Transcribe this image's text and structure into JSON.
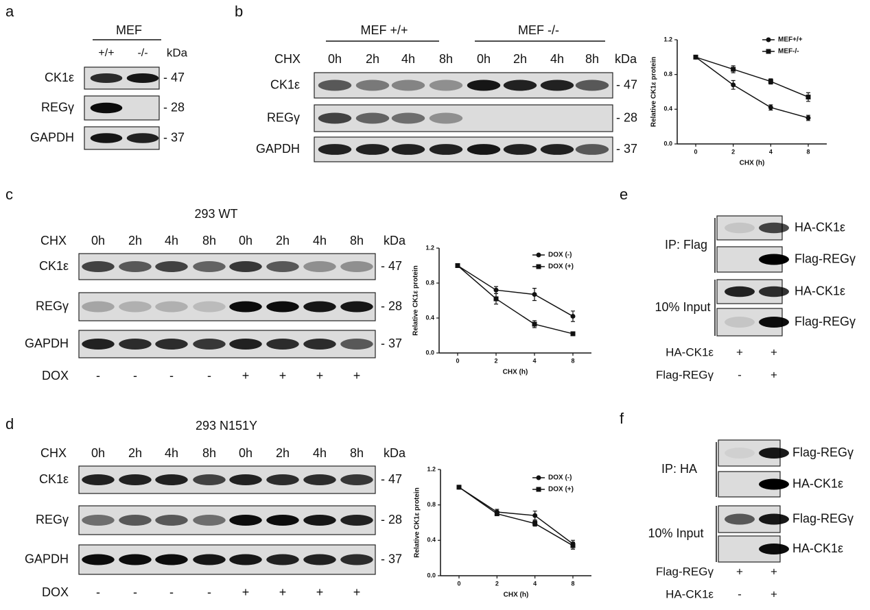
{
  "figure": {
    "a": {
      "label": "a",
      "header": "MEF",
      "columns": [
        "+/+",
        "-/-"
      ],
      "unit": "kDa",
      "rows": [
        {
          "name": "CK1ε",
          "marker": "- 47"
        },
        {
          "name": "REGγ",
          "marker": "- 28"
        },
        {
          "name": "GAPDH",
          "marker": "- 37"
        }
      ]
    },
    "b": {
      "label": "b",
      "groups": [
        "MEF +/+",
        "MEF -/-"
      ],
      "row_label": "CHX",
      "columns": [
        "0h",
        "2h",
        "4h",
        "8h",
        "0h",
        "2h",
        "4h",
        "8h"
      ],
      "unit": "kDa",
      "rows": [
        {
          "name": "CK1ε",
          "marker": "- 47"
        },
        {
          "name": "REGγ",
          "marker": "- 28"
        },
        {
          "name": "GAPDH",
          "marker": "- 37"
        }
      ]
    },
    "c": {
      "label": "c",
      "title": "293 WT",
      "row_label": "CHX",
      "columns": [
        "0h",
        "2h",
        "4h",
        "8h",
        "0h",
        "2h",
        "4h",
        "8h"
      ],
      "unit": "kDa",
      "rows": [
        {
          "name": "CK1ε",
          "marker": "- 47"
        },
        {
          "name": "REGγ",
          "marker": "- 28"
        },
        {
          "name": "GAPDH",
          "marker": "- 37"
        }
      ],
      "treatment": {
        "name": "DOX",
        "values": [
          "-",
          "-",
          "-",
          "-",
          "+",
          "+",
          "+",
          "+"
        ]
      }
    },
    "d": {
      "label": "d",
      "title": "293 N151Y",
      "row_label": "CHX",
      "columns": [
        "0h",
        "2h",
        "4h",
        "8h",
        "0h",
        "2h",
        "4h",
        "8h"
      ],
      "unit": "kDa",
      "rows": [
        {
          "name": "CK1ε",
          "marker": "- 47"
        },
        {
          "name": "REGγ",
          "marker": "- 28"
        },
        {
          "name": "GAPDH",
          "marker": "- 37"
        }
      ],
      "treatment": {
        "name": "DOX",
        "values": [
          "-",
          "-",
          "-",
          "-",
          "+",
          "+",
          "+",
          "+"
        ]
      }
    },
    "e": {
      "label": "e",
      "groups": [
        "IP: Flag",
        "10% Input"
      ],
      "rows": [
        "HA-CK1ε",
        "Flag-REGγ",
        "HA-CK1ε",
        "Flag-REGγ"
      ],
      "treatments": [
        {
          "name": "HA-CK1ε",
          "values": [
            "+",
            "+"
          ]
        },
        {
          "name": "Flag-REGγ",
          "values": [
            "-",
            "+"
          ]
        }
      ]
    },
    "f": {
      "label": "f",
      "groups": [
        "IP: HA",
        "10% Input"
      ],
      "rows": [
        "Flag-REGγ",
        "HA-CK1ε",
        "Flag-REGγ",
        "HA-CK1ε"
      ],
      "treatments": [
        {
          "name": "Flag-REGγ",
          "values": [
            "+",
            "+"
          ]
        },
        {
          "name": "HA-CK1ε",
          "values": [
            "-",
            "+"
          ]
        }
      ]
    }
  },
  "chart_data": [
    {
      "type": "line",
      "x_label": "CHX (h)",
      "y_label": "Relative CK1ε protein",
      "categories": [
        "0",
        "2",
        "4",
        "8"
      ],
      "ylim": [
        0,
        1.2
      ],
      "yticks": [
        {
          "value": 0,
          "label": "0.0"
        },
        0.4,
        0.8,
        1.2
      ],
      "legend": "upper right",
      "series": [
        {
          "name": "MEF+/+",
          "color": "#111111",
          "marker": "circle",
          "values": [
            1,
            0.68,
            0.42,
            0.3
          ],
          "errors": [
            0,
            0.05,
            0.03,
            0.03
          ]
        },
        {
          "name": "MEF-/-",
          "color": "#111111",
          "marker": "square",
          "values": [
            1,
            0.86,
            0.72,
            0.54
          ],
          "errors": [
            0,
            0.04,
            0.03,
            0.05
          ]
        }
      ]
    },
    {
      "type": "line",
      "x_label": "CHX (h)",
      "y_label": "Relative CK1ε protein",
      "categories": [
        "0",
        "2",
        "4",
        "8"
      ],
      "ylim": [
        0,
        1.2
      ],
      "yticks": [
        {
          "value": 0,
          "label": "0.0"
        },
        0.4,
        0.8,
        1.2
      ],
      "legend": "upper right",
      "series": [
        {
          "name": "DOX (-)",
          "color": "#111111",
          "marker": "circle",
          "values": [
            1,
            0.72,
            0.67,
            0.42
          ],
          "errors": [
            0,
            0.04,
            0.07,
            0.06
          ]
        },
        {
          "name": "DOX (+)",
          "color": "#111111",
          "marker": "square",
          "values": [
            1,
            0.62,
            0.33,
            0.22
          ],
          "errors": [
            0,
            0.06,
            0.04,
            0.02
          ]
        }
      ]
    },
    {
      "type": "line",
      "x_label": "CHX (h)",
      "y_label": "Relative CK1ε protein",
      "categories": [
        "0",
        "2",
        "4",
        "8"
      ],
      "ylim": [
        0,
        1.2
      ],
      "yticks": [
        {
          "value": 0,
          "label": "0.0"
        },
        0.4,
        0.8,
        1.2
      ],
      "legend": "upper right",
      "series": [
        {
          "name": "DOX (-)",
          "color": "#111111",
          "marker": "circle",
          "values": [
            1,
            0.72,
            0.68,
            0.36
          ],
          "errors": [
            0,
            0.03,
            0.05,
            0.04
          ]
        },
        {
          "name": "DOX (+)",
          "color": "#111111",
          "marker": "square",
          "values": [
            1,
            0.7,
            0.59,
            0.34
          ],
          "errors": [
            0,
            0.02,
            0.03,
            0.04
          ]
        }
      ]
    }
  ]
}
